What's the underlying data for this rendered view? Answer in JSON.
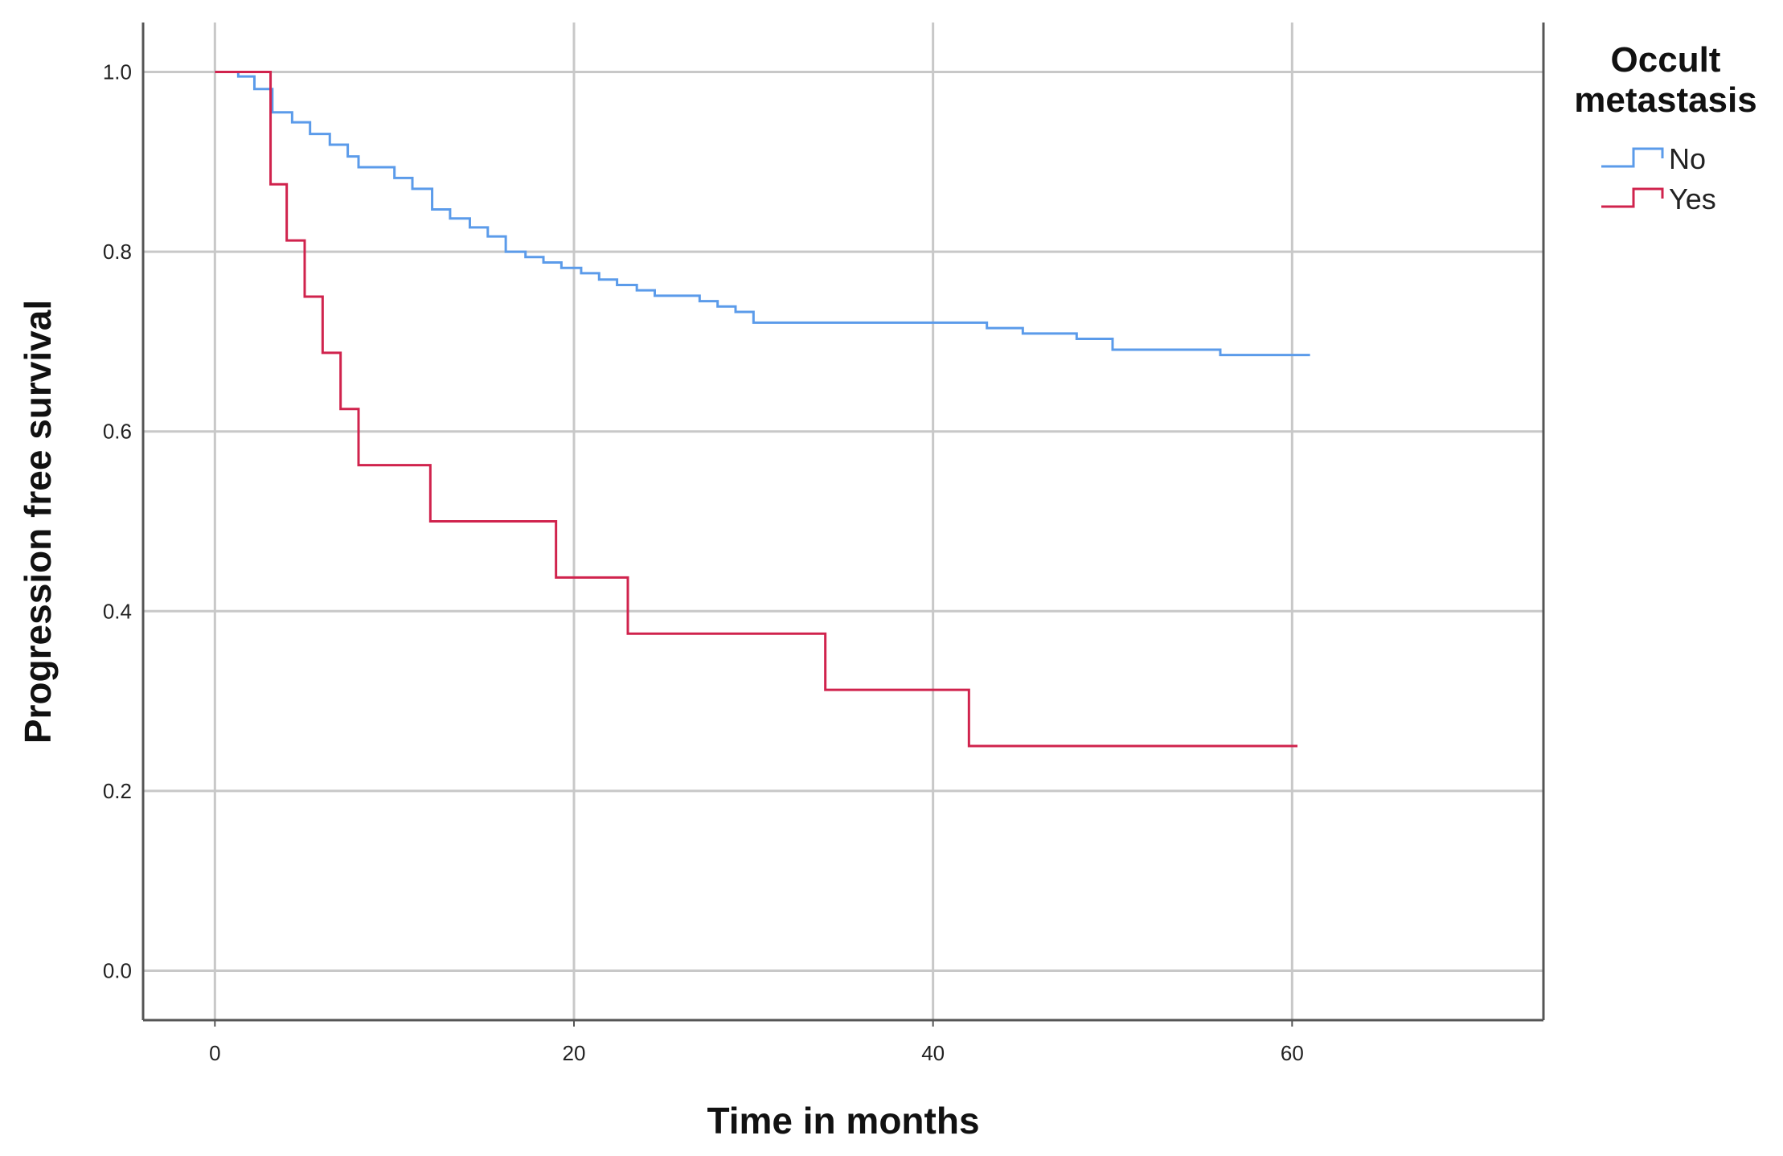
{
  "chart_data": {
    "type": "line",
    "step": true,
    "xlabel": "Time in months",
    "ylabel": "Progression free survival",
    "xlim": [
      -4,
      74
    ],
    "ylim": [
      -0.055,
      1.055
    ],
    "xticks": [
      0,
      20,
      40,
      60
    ],
    "xtick_labels": [
      "0",
      "20",
      "40",
      "60"
    ],
    "yticks": [
      0.0,
      0.2,
      0.4,
      0.6,
      0.8,
      1.0
    ],
    "ytick_labels": [
      "0.0",
      "0.2",
      "0.4",
      "0.6",
      "0.8",
      "1.0"
    ],
    "grid": true,
    "legend": {
      "title_lines": [
        "Occult",
        "metastasis"
      ],
      "placement": "right"
    },
    "series": [
      {
        "name": "No",
        "color": "#5b9bea",
        "x": [
          0,
          1.3,
          2.2,
          3.2,
          4.3,
          5.3,
          6.4,
          7.4,
          8.0,
          10.0,
          11.0,
          12.1,
          13.1,
          14.2,
          15.2,
          16.2,
          17.3,
          18.3,
          19.3,
          20.4,
          21.4,
          22.4,
          23.5,
          24.5,
          27.0,
          28.0,
          29.0,
          30.0,
          42.0,
          43.0,
          45.0,
          48.0,
          50.0,
          56.0,
          61.0
        ],
        "y": [
          1.0,
          0.995,
          0.981,
          0.955,
          0.944,
          0.931,
          0.919,
          0.906,
          0.894,
          0.882,
          0.87,
          0.847,
          0.837,
          0.827,
          0.817,
          0.8,
          0.794,
          0.788,
          0.782,
          0.776,
          0.769,
          0.763,
          0.757,
          0.751,
          0.745,
          0.739,
          0.733,
          0.721,
          0.721,
          0.715,
          0.709,
          0.703,
          0.691,
          0.685,
          0.685
        ]
      },
      {
        "name": "Yes",
        "color": "#d0234d",
        "x": [
          0,
          3.1,
          4.0,
          5.0,
          6.0,
          7.0,
          8.0,
          12.0,
          19.0,
          23.0,
          34.0,
          42.0,
          60.3
        ],
        "y": [
          1.0,
          0.875,
          0.8125,
          0.75,
          0.6875,
          0.625,
          0.5625,
          0.5,
          0.4375,
          0.375,
          0.3125,
          0.25,
          0.25
        ]
      }
    ]
  }
}
